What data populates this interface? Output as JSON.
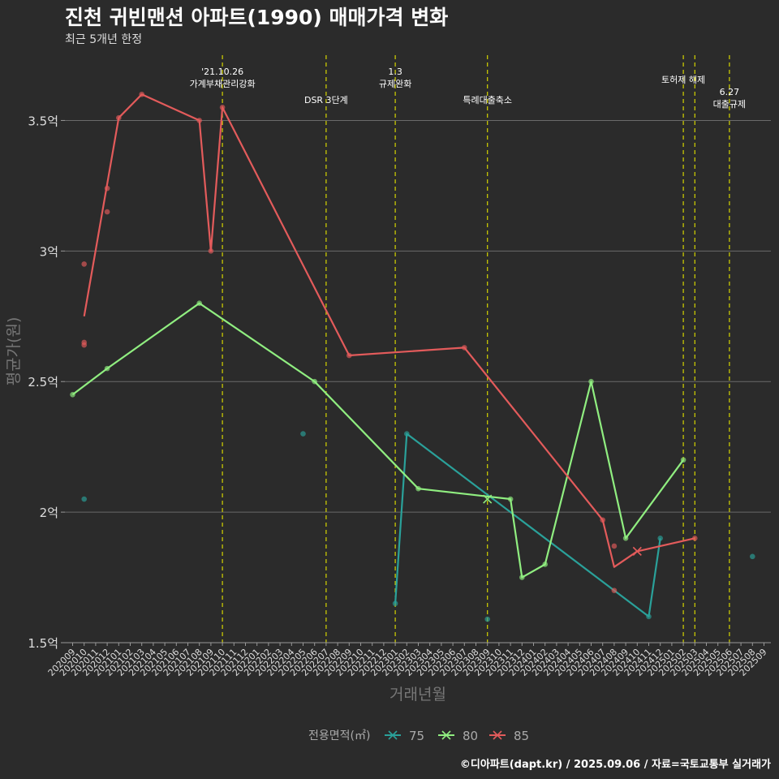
{
  "chart_data": {
    "type": "line",
    "title": "진천 귀빈맨션 아파트(1990) 매매가격 변화",
    "subtitle": "최근 5개년 한정",
    "xlabel": "거래년월",
    "ylabel": "평균가(원)",
    "ylim": [
      1.5,
      3.75
    ],
    "yticks": [
      {
        "value": 1.5,
        "label": "1.5억"
      },
      {
        "value": 2.0,
        "label": "2억"
      },
      {
        "value": 2.5,
        "label": "2.5억"
      },
      {
        "value": 3.0,
        "label": "3억"
      },
      {
        "value": 3.5,
        "label": "3.5억"
      }
    ],
    "x_categories": [
      "202009",
      "202010",
      "202011",
      "202012",
      "202101",
      "202102",
      "202103",
      "202104",
      "202105",
      "202106",
      "202107",
      "202108",
      "202109",
      "202110",
      "202111",
      "202112",
      "202201",
      "202202",
      "202203",
      "202204",
      "202205",
      "202206",
      "202207",
      "202208",
      "202209",
      "202210",
      "202211",
      "202212",
      "202301",
      "202302",
      "202303",
      "202304",
      "202305",
      "202306",
      "202307",
      "202308",
      "202309",
      "202310",
      "202311",
      "202312",
      "202401",
      "202402",
      "202403",
      "202404",
      "202405",
      "202406",
      "202407",
      "202408",
      "202409",
      "202410",
      "202411",
      "202412",
      "202501",
      "202502",
      "202503",
      "202504",
      "202505",
      "202506",
      "202507",
      "202508",
      "202509"
    ],
    "legend_title": "전용면적(㎡)",
    "legend_position": "bottom",
    "series": [
      {
        "name": "75",
        "color": "#2aa19a",
        "line": [
          {
            "x": "202301",
            "y": 1.65
          },
          {
            "x": "202302",
            "y": 2.3
          },
          {
            "x": "202411",
            "y": 1.6
          },
          {
            "x": "202412",
            "y": 1.9
          }
        ],
        "points": [
          {
            "x": "202010",
            "y": 2.05
          },
          {
            "x": "202205",
            "y": 2.3
          },
          {
            "x": "202301",
            "y": 1.65
          },
          {
            "x": "202302",
            "y": 2.3
          },
          {
            "x": "202309",
            "y": 1.59
          },
          {
            "x": "202411",
            "y": 1.6
          },
          {
            "x": "202412",
            "y": 1.9
          },
          {
            "x": "202508",
            "y": 1.83
          }
        ]
      },
      {
        "name": "80",
        "color": "#90ee80",
        "line": [
          {
            "x": "202009",
            "y": 2.45
          },
          {
            "x": "202012",
            "y": 2.55
          },
          {
            "x": "202108",
            "y": 2.8
          },
          {
            "x": "202206",
            "y": 2.5
          },
          {
            "x": "202303",
            "y": 2.09
          },
          {
            "x": "202309",
            "y": 2.06
          },
          {
            "x": "202311",
            "y": 2.05
          },
          {
            "x": "202312",
            "y": 1.75
          },
          {
            "x": "202402",
            "y": 1.8
          },
          {
            "x": "202406",
            "y": 2.5
          },
          {
            "x": "202409",
            "y": 1.9
          },
          {
            "x": "202502",
            "y": 2.2
          }
        ],
        "points": [
          {
            "x": "202009",
            "y": 2.45
          },
          {
            "x": "202012",
            "y": 2.55
          },
          {
            "x": "202108",
            "y": 2.8
          },
          {
            "x": "202206",
            "y": 2.5
          },
          {
            "x": "202303",
            "y": 2.09
          },
          {
            "x": "202311",
            "y": 2.05
          },
          {
            "x": "202312",
            "y": 1.75
          },
          {
            "x": "202402",
            "y": 1.8
          },
          {
            "x": "202406",
            "y": 2.5
          },
          {
            "x": "202409",
            "y": 1.9
          },
          {
            "x": "202502",
            "y": 2.2
          }
        ],
        "cross": {
          "x": "202309",
          "y": 2.05
        }
      },
      {
        "name": "85",
        "color": "#e35b5b",
        "line": [
          {
            "x": "202010",
            "y": 2.75
          },
          {
            "x": "202101",
            "y": 3.51
          },
          {
            "x": "202103",
            "y": 3.6
          },
          {
            "x": "202108",
            "y": 3.5
          },
          {
            "x": "202109",
            "y": 3.0
          },
          {
            "x": "202110",
            "y": 3.55
          },
          {
            "x": "202209",
            "y": 2.6
          },
          {
            "x": "202307",
            "y": 2.63
          },
          {
            "x": "202407",
            "y": 1.97
          },
          {
            "x": "202408",
            "y": 1.79
          },
          {
            "x": "202410",
            "y": 1.85
          },
          {
            "x": "202503",
            "y": 1.9
          }
        ],
        "points": [
          {
            "x": "202010",
            "y": 2.95
          },
          {
            "x": "202010",
            "y": 2.65
          },
          {
            "x": "202010",
            "y": 2.64
          },
          {
            "x": "202012",
            "y": 3.24
          },
          {
            "x": "202012",
            "y": 3.15
          },
          {
            "x": "202101",
            "y": 3.51
          },
          {
            "x": "202103",
            "y": 3.6
          },
          {
            "x": "202108",
            "y": 3.5
          },
          {
            "x": "202109",
            "y": 3.0
          },
          {
            "x": "202110",
            "y": 3.55
          },
          {
            "x": "202209",
            "y": 2.6
          },
          {
            "x": "202307",
            "y": 2.63
          },
          {
            "x": "202407",
            "y": 1.97
          },
          {
            "x": "202408",
            "y": 1.87
          },
          {
            "x": "202408",
            "y": 1.7
          },
          {
            "x": "202503",
            "y": 1.9
          }
        ],
        "cross": {
          "x": "202410",
          "y": 1.85
        }
      }
    ],
    "events": [
      {
        "x": "202110",
        "lines": [
          "'21.10.26",
          "가계부채관리강화"
        ],
        "row": 0
      },
      {
        "x": "202207",
        "lines": [
          "DSR 3단계"
        ],
        "row": 2
      },
      {
        "x": "202301",
        "lines": [
          "1.3",
          "규제완화"
        ],
        "row": 0
      },
      {
        "x": "202309",
        "lines": [
          "특례대출축소"
        ],
        "row": 2
      },
      {
        "x": "202502",
        "lines": [
          "토허제 해제"
        ],
        "row": 1
      },
      {
        "x": "202503",
        "lines": [],
        "row": 1
      },
      {
        "x": "202506",
        "lines": [
          "6.27",
          "대출규제"
        ],
        "row": 3
      }
    ],
    "event_line_color": "#d4d400",
    "grid": true,
    "caption": "©디아파트(dapt.kr) / 2025.09.06 / 자료=국토교통부 실거래가"
  }
}
